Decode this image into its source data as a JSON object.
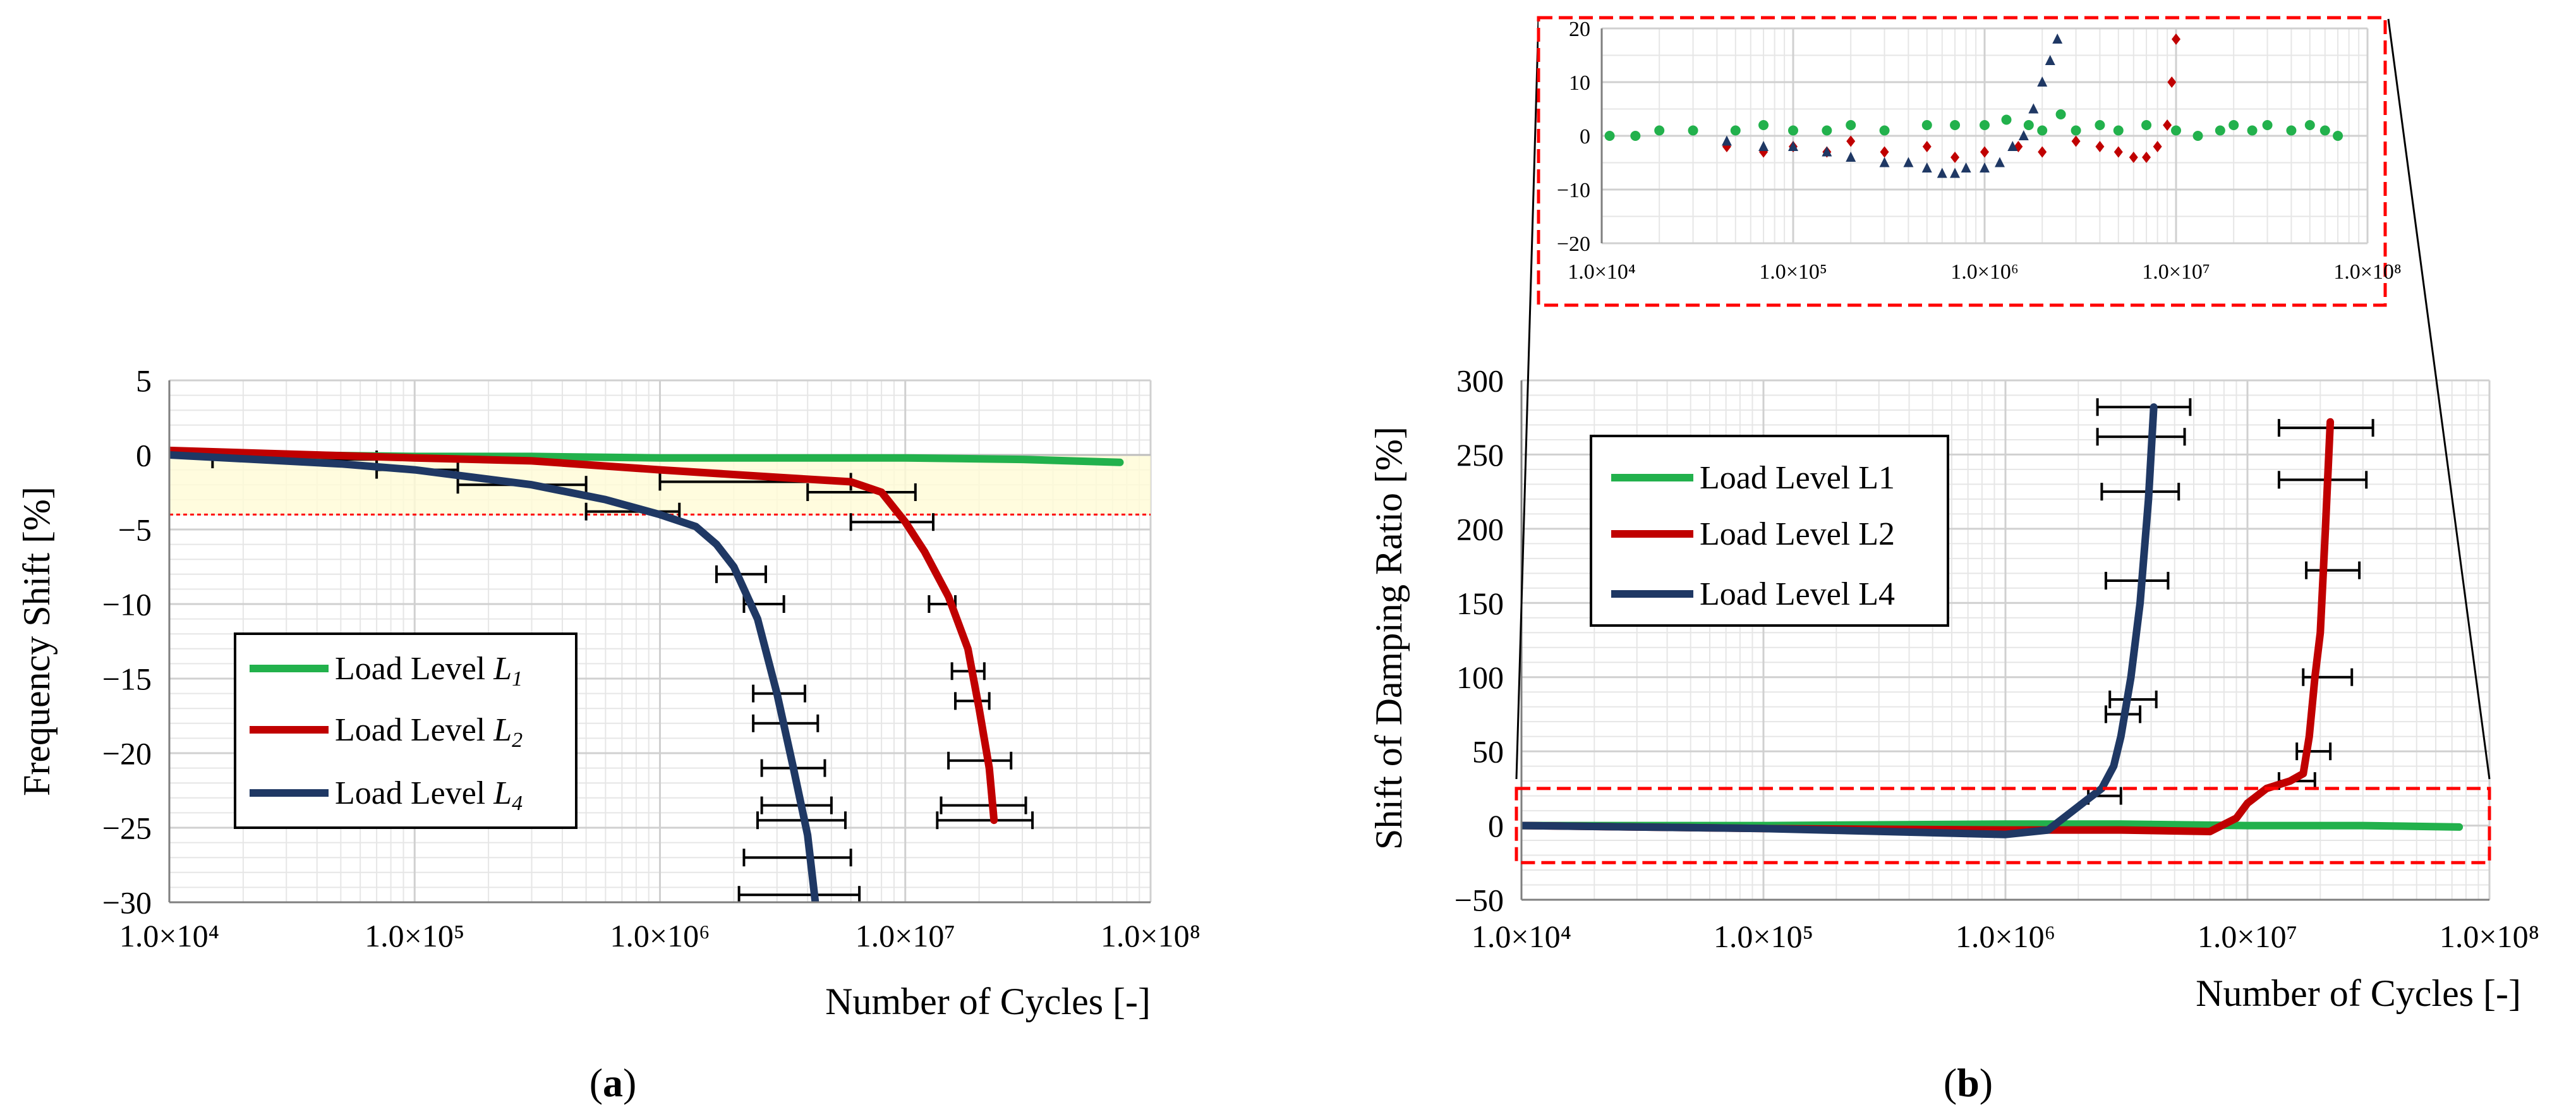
{
  "chart_data": [
    {
      "panel": "a",
      "type": "line",
      "panel_label": "(a)",
      "xlabel": "Number of Cycles [-]",
      "ylabel": "Frequency Shift [%]",
      "xscale": "log",
      "xlim": [
        10000,
        100000000
      ],
      "ylim": [
        -30,
        5
      ],
      "x_ticks": [
        10000,
        100000,
        1000000,
        10000000,
        100000000
      ],
      "x_tick_labels": [
        "1.0×10⁴",
        "1.0×10⁵",
        "1.0×10⁶",
        "1.0×10⁷",
        "1.0×10⁸"
      ],
      "y_ticks": [
        5,
        0,
        -5,
        -10,
        -15,
        -20,
        -25,
        -30
      ],
      "y_tick_labels": [
        "5",
        "0",
        "−5",
        "−10",
        "−15",
        "−20",
        "−25",
        "−30"
      ],
      "grid": true,
      "legend_position": "left-bottom",
      "threshold_line_y": -4,
      "highlight_band_y": [
        -4,
        0
      ],
      "series": [
        {
          "name": "Load Level L1",
          "legend_main": "Load Level ",
          "legend_sub": "1",
          "color": "#22b14c",
          "x": [
            10000,
            30000,
            100000,
            300000,
            1000000,
            3000000,
            10000000,
            30000000,
            75000000
          ],
          "y": [
            0.1,
            0.0,
            -0.1,
            -0.1,
            -0.2,
            -0.2,
            -0.2,
            -0.3,
            -0.5
          ]
        },
        {
          "name": "Load Level L2",
          "legend_main": "Load Level ",
          "legend_sub": "2",
          "color": "#c00000",
          "x": [
            10000,
            100000,
            300000,
            1000000,
            3000000,
            6000000,
            8000000,
            10000000,
            12000000,
            15000000,
            18000000,
            20000000,
            22000000,
            23000000
          ],
          "y": [
            0.3,
            -0.2,
            -0.4,
            -1.0,
            -1.5,
            -1.8,
            -2.5,
            -4.5,
            -6.5,
            -9.5,
            -13.0,
            -17.0,
            -21.0,
            -24.5
          ]
        },
        {
          "name": "Load Level L4",
          "legend_main": "Load Level ",
          "legend_sub": "4",
          "color": "#1f3864",
          "x": [
            10000,
            50000,
            100000,
            300000,
            600000,
            1000000,
            1400000,
            1700000,
            2000000,
            2500000,
            3000000,
            3500000,
            4000000,
            4300000
          ],
          "y": [
            0.0,
            -0.6,
            -1.0,
            -2.0,
            -3.0,
            -4.0,
            -4.8,
            -6.0,
            -7.5,
            -11.0,
            -16.0,
            -21.0,
            -25.5,
            -30.0
          ]
        }
      ],
      "error_bars": [
        {
          "x": 40000,
          "y": -0.3,
          "xerr_low": 15000,
          "xerr_high": 70000
        },
        {
          "x": 100000,
          "y": -1.0,
          "xerr_low": 70000,
          "xerr_high": 150000
        },
        {
          "x": 300000,
          "y": -2.0,
          "xerr_low": 150000,
          "xerr_high": 500000
        },
        {
          "x": 800000,
          "y": -3.8,
          "xerr_low": 500000,
          "xerr_high": 1200000
        },
        {
          "x": 2000000,
          "y": -1.8,
          "xerr_low": 1000000,
          "xerr_high": 6000000
        },
        {
          "x": 7000000,
          "y": -2.5,
          "xerr_low": 4000000,
          "xerr_high": 11000000
        },
        {
          "x": 9500000,
          "y": -4.5,
          "xerr_low": 6000000,
          "xerr_high": 13000000
        },
        {
          "x": 2300000,
          "y": -8.0,
          "xerr_low": 1700000,
          "xerr_high": 2700000
        },
        {
          "x": 2700000,
          "y": -10.0,
          "xerr_low": 2200000,
          "xerr_high": 3200000
        },
        {
          "x": 3100000,
          "y": -16.0,
          "xerr_low": 2400000,
          "xerr_high": 3900000
        },
        {
          "x": 3200000,
          "y": -18.0,
          "xerr_low": 2400000,
          "xerr_high": 4400000
        },
        {
          "x": 3500000,
          "y": -21.0,
          "xerr_low": 2600000,
          "xerr_high": 4700000
        },
        {
          "x": 3700000,
          "y": -23.5,
          "xerr_low": 2600000,
          "xerr_high": 5000000
        },
        {
          "x": 3800000,
          "y": -24.5,
          "xerr_low": 2500000,
          "xerr_high": 5700000
        },
        {
          "x": 3900000,
          "y": -27.0,
          "xerr_low": 2200000,
          "xerr_high": 6000000
        },
        {
          "x": 4000000,
          "y": -29.5,
          "xerr_low": 2100000,
          "xerr_high": 6500000
        },
        {
          "x": 14000000,
          "y": -10.0,
          "xerr_low": 12500000,
          "xerr_high": 16000000
        },
        {
          "x": 18000000,
          "y": -14.5,
          "xerr_low": 15500000,
          "xerr_high": 21000000
        },
        {
          "x": 19000000,
          "y": -16.5,
          "xerr_low": 16000000,
          "xerr_high": 22000000
        },
        {
          "x": 20000000,
          "y": -20.5,
          "xerr_low": 15000000,
          "xerr_high": 27000000
        },
        {
          "x": 21000000,
          "y": -23.5,
          "xerr_low": 14000000,
          "xerr_high": 31000000
        },
        {
          "x": 22000000,
          "y": -24.5,
          "xerr_low": 13500000,
          "xerr_high": 33000000
        }
      ]
    },
    {
      "panel": "b",
      "type": "line",
      "panel_label": "(b)",
      "xlabel": "Number of Cycles [-]",
      "ylabel": "Shift of Damping Ratio [%]",
      "xscale": "log",
      "xlim": [
        10000,
        100000000
      ],
      "ylim": [
        -50,
        300
      ],
      "x_ticks": [
        10000,
        100000,
        1000000,
        10000000,
        100000000
      ],
      "x_tick_labels": [
        "1.0×10⁴",
        "1.0×10⁵",
        "1.0×10⁶",
        "1.0×10⁷",
        "1.0×10⁸"
      ],
      "y_ticks": [
        300,
        250,
        200,
        150,
        100,
        50,
        0,
        -50
      ],
      "y_tick_labels": [
        "300",
        "250",
        "200",
        "150",
        "100",
        "50",
        "0",
        "−50"
      ],
      "grid": true,
      "legend_position": "top-left",
      "zoom_box_y": [
        -25,
        25
      ],
      "series": [
        {
          "name": "Load Level L1",
          "color": "#22b14c",
          "x": [
            10000,
            100000,
            1000000,
            3000000,
            10000000,
            30000000,
            75000000
          ],
          "y": [
            0,
            0,
            1,
            1,
            0,
            0,
            -1
          ]
        },
        {
          "name": "Load Level L2",
          "color": "#c00000",
          "x": [
            10000,
            100000,
            1000000,
            3000000,
            7000000,
            9000000,
            10000000,
            12000000,
            15000000,
            17000000,
            18000000,
            19000000,
            20000000,
            21000000,
            22000000
          ],
          "y": [
            0,
            -2,
            -3,
            -3,
            -4,
            5,
            15,
            25,
            30,
            35,
            60,
            100,
            130,
            200,
            272
          ]
        },
        {
          "name": "Load Level L4",
          "color": "#1f3864",
          "x": [
            10000,
            100000,
            1000000,
            1500000,
            1900000,
            2200000,
            2500000,
            2800000,
            3000000,
            3300000,
            3600000,
            3900000,
            4100000
          ],
          "y": [
            0,
            -2,
            -6,
            -3,
            10,
            18,
            25,
            40,
            60,
            100,
            150,
            220,
            282
          ]
        }
      ],
      "error_bars": [
        {
          "x": 2600000,
          "y": 20,
          "xerr_low": 2200000,
          "xerr_high": 3000000
        },
        {
          "x": 3000000,
          "y": 75,
          "xerr_low": 2600000,
          "xerr_high": 3600000
        },
        {
          "x": 3300000,
          "y": 85,
          "xerr_low": 2700000,
          "xerr_high": 4200000
        },
        {
          "x": 3500000,
          "y": 165,
          "xerr_low": 2600000,
          "xerr_high": 4700000
        },
        {
          "x": 3600000,
          "y": 225,
          "xerr_low": 2500000,
          "xerr_high": 5200000
        },
        {
          "x": 3800000,
          "y": 262,
          "xerr_low": 2400000,
          "xerr_high": 5500000
        },
        {
          "x": 3900000,
          "y": 282,
          "xerr_low": 2400000,
          "xerr_high": 5800000
        },
        {
          "x": 16000000,
          "y": 30,
          "xerr_low": 13500000,
          "xerr_high": 19000000
        },
        {
          "x": 19000000,
          "y": 50,
          "xerr_low": 16000000,
          "xerr_high": 22000000
        },
        {
          "x": 20000000,
          "y": 100,
          "xerr_low": 17000000,
          "xerr_high": 27000000
        },
        {
          "x": 21000000,
          "y": 172,
          "xerr_low": 17500000,
          "xerr_high": 29000000
        },
        {
          "x": 21000000,
          "y": 233,
          "xerr_low": 13500000,
          "xerr_high": 31000000
        },
        {
          "x": 22000000,
          "y": 268,
          "xerr_low": 13500000,
          "xerr_high": 33000000
        }
      ],
      "inset": {
        "type": "scatter",
        "xscale": "log",
        "xlim": [
          10000,
          100000000
        ],
        "ylim": [
          -20,
          20
        ],
        "x_ticks": [
          10000,
          100000,
          1000000,
          10000000,
          100000000
        ],
        "x_tick_labels": [
          "1.0×10⁴",
          "1.0×10⁵",
          "1.0×10⁶",
          "1.0×10⁷",
          "1.0×10⁸"
        ],
        "y_ticks": [
          20,
          10,
          0,
          -10,
          -20
        ],
        "y_tick_labels": [
          "20",
          "10",
          "0",
          "−10",
          "−20"
        ],
        "series": [
          {
            "name": "Load Level L1",
            "color": "#22b14c",
            "marker": "circle",
            "x": [
              11000,
              15000,
              20000,
              30000,
              50000,
              70000,
              100000,
              150000,
              200000,
              300000,
              500000,
              700000,
              1000000,
              1300000,
              1700000,
              2000000,
              2500000,
              3000000,
              4000000,
              5000000,
              7000000,
              10000000,
              13000000,
              17000000,
              20000000,
              25000000,
              30000000,
              40000000,
              50000000,
              60000000,
              70000000
            ],
            "y": [
              0,
              0,
              1,
              1,
              1,
              2,
              1,
              1,
              2,
              1,
              2,
              2,
              2,
              3,
              2,
              1,
              4,
              1,
              2,
              1,
              2,
              1,
              0,
              1,
              2,
              1,
              2,
              1,
              2,
              1,
              0
            ]
          },
          {
            "name": "Load Level L2",
            "color": "#c00000",
            "marker": "diamond",
            "x": [
              45000,
              70000,
              100000,
              150000,
              200000,
              300000,
              500000,
              700000,
              1000000,
              1500000,
              2000000,
              3000000,
              4000000,
              5000000,
              6000000,
              7000000,
              8000000,
              9000000,
              9500000,
              10000000
            ],
            "y": [
              -2,
              -3,
              -2,
              -3,
              -1,
              -3,
              -2,
              -4,
              -3,
              -2,
              -3,
              -1,
              -2,
              -3,
              -4,
              -4,
              -2,
              2,
              10,
              18
            ]
          },
          {
            "name": "Load Level L4",
            "color": "#1f3864",
            "marker": "triangle",
            "x": [
              45000,
              70000,
              100000,
              150000,
              200000,
              300000,
              400000,
              500000,
              600000,
              700000,
              800000,
              1000000,
              1200000,
              1400000,
              1600000,
              1800000,
              2000000,
              2200000,
              2400000
            ],
            "y": [
              -1,
              -2,
              -2,
              -3,
              -4,
              -5,
              -5,
              -6,
              -7,
              -7,
              -6,
              -6,
              -5,
              -2,
              0,
              5,
              10,
              14,
              18
            ]
          }
        ]
      },
      "legend_entries": [
        "Load Level L1",
        "Load Level L2",
        "Load Level L4"
      ]
    }
  ]
}
